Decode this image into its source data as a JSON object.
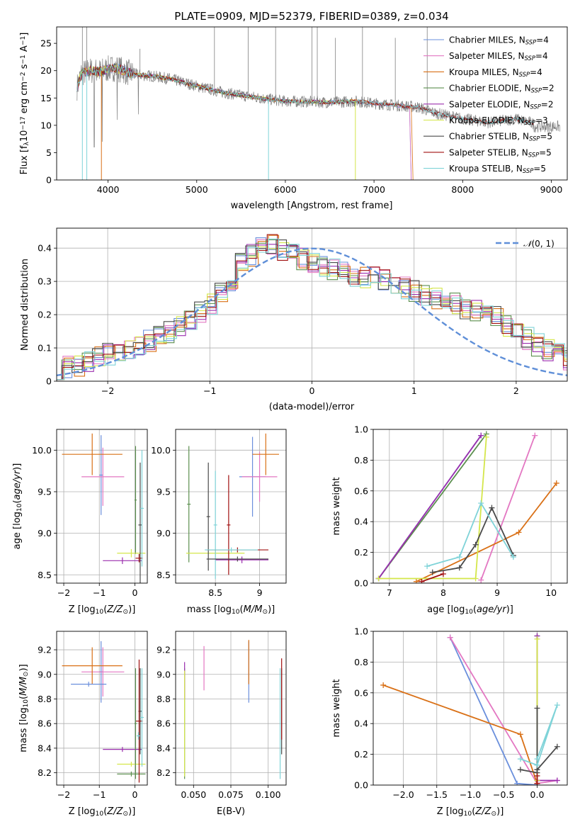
{
  "colors": {
    "chabrier_miles": "#6a8fdc",
    "salpeter_miles": "#e377c2",
    "kroupa_miles": "#d97016",
    "chabrier_elodie": "#5c8f4f",
    "salpeter_elodie": "#9b2fae",
    "kroupa_elodie": "#d4e64a",
    "chabrier_stelib": "#4a4a4a",
    "salpeter_stelib": "#a01010",
    "kroupa_stelib": "#7fd3d8",
    "spectrum": "#808080",
    "normal": "#5f8fd8"
  },
  "chart_data": [
    {
      "id": "spectrum",
      "type": "line",
      "title": "PLATE=0909, MJD=52379, FIBERID=0389, z=0.034",
      "xlabel": "wavelength [Angstrom, rest frame]",
      "ylabel": "Flux [f_λ 10^-17 erg cm^-2 s^-1 A^-1]",
      "xlim": [
        3420,
        9180
      ],
      "ylim": [
        0,
        28
      ],
      "xticks": [
        4000,
        5000,
        6000,
        7000,
        8000,
        9000
      ],
      "yticks": [
        0,
        5,
        10,
        15,
        20,
        25
      ],
      "grid": false,
      "legend_position": "top-right",
      "legend": [
        {
          "label": "Chabrier MILES, N_SSP=4",
          "color": "chabrier_miles"
        },
        {
          "label": "Salpeter MILES, N_SSP=4",
          "color": "salpeter_miles"
        },
        {
          "label": "Kroupa MILES, N_SSP=4",
          "color": "kroupa_miles"
        },
        {
          "label": "Chabrier ELODIE, N_SSP=2",
          "color": "chabrier_elodie"
        },
        {
          "label": "Salpeter ELODIE, N_SSP=2",
          "color": "salpeter_elodie"
        },
        {
          "label": "Kroupa ELODIE, N_SSP=3",
          "color": "kroupa_elodie"
        },
        {
          "label": "Chabrier STELIB, N_SSP=5",
          "color": "chabrier_stelib"
        },
        {
          "label": "Salpeter STELIB, N_SSP=5",
          "color": "salpeter_stelib"
        },
        {
          "label": "Kroupa STELIB, N_SSP=5",
          "color": "kroupa_stelib"
        }
      ],
      "continuum": {
        "x": [
          3650,
          3700,
          3800,
          3900,
          4000,
          4100,
          4200,
          4300,
          4500,
          4700,
          5000,
          5300,
          5500,
          5800,
          6000,
          6300,
          6500,
          6800,
          7000,
          7300,
          7500,
          7700,
          8000,
          8300,
          8600,
          8800
        ],
        "y": [
          17,
          19.5,
          20,
          19.8,
          20.3,
          20.5,
          19.8,
          19.3,
          19,
          18.5,
          17.2,
          16,
          15.5,
          14.8,
          14.4,
          14.3,
          14.2,
          14.4,
          14,
          13.6,
          13.3,
          12.2,
          11.2,
          10.5,
          11.2,
          10.3
        ]
      }
    },
    {
      "id": "residuals",
      "type": "line",
      "xlabel": "(data-model)/error",
      "ylabel": "Normed distribution",
      "xlim": [
        -2.5,
        2.5
      ],
      "ylim": [
        0,
        0.46
      ],
      "xticks": [
        -2,
        -1,
        0,
        1,
        2
      ],
      "yticks": [
        0.0,
        0.1,
        0.2,
        0.3,
        0.4
      ],
      "grid": true,
      "legend_position": "top-right",
      "legend": [
        {
          "label": "𝒩(0, 1)",
          "color": "normal"
        }
      ],
      "normal": {
        "mean": 0,
        "sigma": 1
      },
      "bin_width": 0.1,
      "hist_mean": [
        0.03,
        0.04,
        0.05,
        0.06,
        0.07,
        0.08,
        0.09,
        0.1,
        0.11,
        0.12,
        0.13,
        0.15,
        0.17,
        0.19,
        0.21,
        0.23,
        0.26,
        0.29,
        0.32,
        0.35,
        0.37,
        0.38,
        0.39,
        0.38,
        0.37,
        0.36,
        0.35,
        0.34,
        0.33,
        0.32,
        0.31,
        0.31,
        0.3,
        0.29,
        0.28,
        0.27,
        0.26,
        0.25,
        0.24,
        0.23,
        0.22,
        0.21,
        0.2,
        0.19,
        0.17,
        0.15,
        0.13,
        0.11,
        0.09,
        0.08,
        0.06,
        0.05,
        0.04,
        0.035,
        0.03
      ]
    },
    {
      "id": "age_vs_Z",
      "type": "scatter",
      "xlabel": "Z [log10(Z/Z⊙)]",
      "ylabel": "age [log10(age/yr)]",
      "xlim": [
        -2.2,
        0.35
      ],
      "ylim": [
        8.4,
        10.25
      ],
      "xticks": [
        -2,
        -1,
        0
      ],
      "yticks": [
        8.5,
        9.0,
        9.5,
        10.0
      ],
      "grid": true,
      "errorbars": [
        {
          "series": "chabrier_miles",
          "x": -0.95,
          "y": 9.7,
          "xerr": 0.05,
          "yerr": 0.48
        },
        {
          "series": "salpeter_miles",
          "x": -0.9,
          "y": 9.68,
          "xerr": 0.6,
          "yerr": 0.35
        },
        {
          "series": "kroupa_miles",
          "x": -1.2,
          "y": 9.95,
          "xerr": 0.85,
          "yerr": 0.25
        },
        {
          "series": "chabrier_elodie",
          "x": 0.02,
          "y": 9.4,
          "xerr": 0.03,
          "yerr": 0.65
        },
        {
          "series": "salpeter_elodie",
          "x": -0.35,
          "y": 8.67,
          "xerr": 0.55,
          "yerr": 0.04
        },
        {
          "series": "kroupa_elodie",
          "x": -0.1,
          "y": 8.76,
          "xerr": 0.4,
          "yerr": 0.05
        },
        {
          "series": "chabrier_stelib",
          "x": 0.15,
          "y": 9.1,
          "xerr": 0.05,
          "yerr": 0.75
        },
        {
          "series": "salpeter_stelib",
          "x": 0.12,
          "y": 8.7,
          "xerr": 0.1,
          "yerr": 0.05
        },
        {
          "series": "kroupa_stelib",
          "x": 0.2,
          "y": 9.3,
          "xerr": 0.05,
          "yerr": 0.7
        }
      ]
    },
    {
      "id": "age_vs_mass",
      "type": "scatter",
      "xlabel": "mass [log10(M/M⊙)]",
      "ylabel": "",
      "xlim": [
        8.05,
        9.3
      ],
      "ylim": [
        8.4,
        10.25
      ],
      "xticks": [
        8.5,
        9.0
      ],
      "yticks": [
        8.5,
        9.0,
        9.5,
        10.0
      ],
      "grid": true,
      "errorbars": [
        {
          "series": "chabrier_miles",
          "x": 8.92,
          "y": 9.68,
          "xerr": 0.15,
          "yerr": 0.48
        },
        {
          "series": "salpeter_miles",
          "x": 9.0,
          "y": 9.68,
          "xerr": 0.2,
          "yerr": 0.3
        },
        {
          "series": "kroupa_miles",
          "x": 9.07,
          "y": 9.95,
          "xerr": 0.15,
          "yerr": 0.25
        },
        {
          "series": "chabrier_elodie",
          "x": 8.2,
          "y": 9.35,
          "xerr": 0.02,
          "yerr": 0.7
        },
        {
          "series": "salpeter_elodie",
          "x": 8.8,
          "y": 8.68,
          "xerr": 0.3,
          "yerr": 0.04
        },
        {
          "series": "kroupa_elodie",
          "x": 8.5,
          "y": 8.76,
          "xerr": 0.33,
          "yerr": 0.05
        },
        {
          "series": "chabrier_stelib",
          "x": 8.42,
          "y": 9.2,
          "xerr": 0.02,
          "yerr": 0.65
        },
        {
          "series": "salpeter_stelib",
          "x": 8.65,
          "y": 9.1,
          "xerr": 0.02,
          "yerr": 0.6
        },
        {
          "series": "kroupa_stelib",
          "x": 8.5,
          "y": 9.1,
          "xerr": 0.02,
          "yerr": 0.65
        },
        {
          "series": "chabrier_stelib",
          "x": 8.75,
          "y": 8.69,
          "xerr": 0.35,
          "yerr": 0.03
        },
        {
          "series": "salpeter_stelib",
          "x": 8.75,
          "y": 8.8,
          "xerr": 0.35,
          "yerr": 0.03
        },
        {
          "series": "kroupa_stelib",
          "x": 8.68,
          "y": 8.8,
          "xerr": 0.3,
          "yerr": 0.03
        }
      ]
    },
    {
      "id": "weight_vs_age",
      "type": "line",
      "xlabel": "age [log10(age/yr)]",
      "ylabel": "mass weight",
      "xlim": [
        6.7,
        10.3
      ],
      "ylim": [
        0,
        1.0
      ],
      "xticks": [
        7,
        8,
        9,
        10
      ],
      "yticks": [
        0.0,
        0.2,
        0.4,
        0.6,
        0.8,
        1.0
      ],
      "grid": true,
      "series": [
        {
          "color": "chabrier_miles",
          "x": [
            6.8,
            8.7
          ],
          "y": [
            0.03,
            0.96
          ]
        },
        {
          "color": "salpeter_miles",
          "x": [
            8.7,
            9.7
          ],
          "y": [
            0.02,
            0.96
          ]
        },
        {
          "color": "kroupa_miles",
          "x": [
            7.5,
            9.4,
            10.1
          ],
          "y": [
            0.01,
            0.33,
            0.65
          ]
        },
        {
          "color": "chabrier_elodie",
          "x": [
            6.8,
            8.8
          ],
          "y": [
            0.03,
            0.97
          ]
        },
        {
          "color": "salpeter_elodie",
          "x": [
            6.8,
            8.7
          ],
          "y": [
            0.03,
            0.96
          ]
        },
        {
          "color": "kroupa_elodie",
          "x": [
            6.8,
            8.6,
            8.8
          ],
          "y": [
            0.03,
            0.03,
            0.95
          ]
        },
        {
          "color": "chabrier_stelib",
          "x": [
            7.8,
            8.3,
            8.6,
            8.9,
            9.3
          ],
          "y": [
            0.07,
            0.1,
            0.25,
            0.49,
            0.18
          ]
        },
        {
          "color": "salpeter_stelib",
          "x": [
            7.6,
            8.0
          ],
          "y": [
            0.01,
            0.06
          ]
        },
        {
          "color": "kroupa_stelib",
          "x": [
            7.7,
            8.3,
            8.7,
            9.3
          ],
          "y": [
            0.11,
            0.17,
            0.52,
            0.17
          ]
        }
      ]
    },
    {
      "id": "mass_vs_Z",
      "type": "scatter",
      "xlabel": "Z [log10(Z/Z⊙)]",
      "ylabel": "mass [log10(M/M⊙)]",
      "xlim": [
        -2.2,
        0.35
      ],
      "ylim": [
        8.1,
        9.35
      ],
      "xticks": [
        -2,
        -1,
        0
      ],
      "yticks": [
        8.2,
        8.4,
        8.6,
        8.8,
        9.0,
        9.2
      ],
      "grid": true,
      "errorbars": [
        {
          "series": "chabrier_miles",
          "x": -0.95,
          "y": 9.02,
          "xerr": 0.05,
          "yerr": 0.25
        },
        {
          "series": "salpeter_miles",
          "x": -0.9,
          "y": 9.02,
          "xerr": 0.6,
          "yerr": 0.2
        },
        {
          "series": "kroupa_miles",
          "x": -1.2,
          "y": 9.07,
          "xerr": 0.85,
          "yerr": 0.15
        },
        {
          "series": "chabrier_miles",
          "x": -1.3,
          "y": 8.92,
          "xerr": 0.5,
          "yerr": 0.02
        },
        {
          "series": "chabrier_elodie",
          "x": -0.1,
          "y": 8.19,
          "xerr": 0.4,
          "yerr": 0.02
        },
        {
          "series": "salpeter_elodie",
          "x": -0.35,
          "y": 8.39,
          "xerr": 0.55,
          "yerr": 0.02
        },
        {
          "series": "kroupa_elodie",
          "x": -0.1,
          "y": 8.27,
          "xerr": 0.4,
          "yerr": 0.02
        },
        {
          "series": "chabrier_stelib",
          "x": 0.15,
          "y": 8.7,
          "xerr": 0.05,
          "yerr": 0.35
        },
        {
          "series": "salpeter_stelib",
          "x": 0.12,
          "y": 8.62,
          "xerr": 0.1,
          "yerr": 0.5
        },
        {
          "series": "kroupa_stelib",
          "x": 0.2,
          "y": 8.65,
          "xerr": 0.05,
          "yerr": 0.4
        },
        {
          "series": "chabrier_elodie",
          "x": 0.02,
          "y": 8.6,
          "xerr": 0.03,
          "yerr": 0.45
        },
        {
          "series": "kroupa_stelib",
          "x": 0.1,
          "y": 8.5,
          "xerr": 0.05,
          "yerr": 0.03
        }
      ]
    },
    {
      "id": "mass_vs_ebv",
      "type": "scatter",
      "xlabel": "E(B-V)",
      "ylabel": "",
      "xlim": [
        0.038,
        0.112
      ],
      "ylim": [
        8.1,
        9.35
      ],
      "xticks": [
        0.05,
        0.075,
        0.1
      ],
      "xticklabels": [
        "0.050",
        "0.075",
        "0.100"
      ],
      "yticks": [
        8.2,
        8.4,
        8.6,
        8.8,
        9.0,
        9.2
      ],
      "grid": true,
      "errorbars": [
        {
          "series": "chabrier_miles",
          "x": 0.087,
          "y": 9.02,
          "xerr": 0,
          "yerr": 0.25
        },
        {
          "series": "salpeter_miles",
          "x": 0.057,
          "y": 9.05,
          "xerr": 0,
          "yerr": 0.18
        },
        {
          "series": "kroupa_miles",
          "x": 0.087,
          "y": 9.1,
          "xerr": 0,
          "yerr": 0.18
        },
        {
          "series": "chabrier_elodie",
          "x": 0.044,
          "y": 8.6,
          "xerr": 0,
          "yerr": 0.45
        },
        {
          "series": "salpeter_elodie",
          "x": 0.044,
          "y": 8.95,
          "xerr": 0,
          "yerr": 0.15
        },
        {
          "series": "kroupa_elodie",
          "x": 0.044,
          "y": 8.6,
          "xerr": 0,
          "yerr": 0.43
        },
        {
          "series": "chabrier_stelib",
          "x": 0.109,
          "y": 8.7,
          "xerr": 0,
          "yerr": 0.35
        },
        {
          "series": "salpeter_stelib",
          "x": 0.109,
          "y": 8.8,
          "xerr": 0,
          "yerr": 0.33
        },
        {
          "series": "kroupa_stelib",
          "x": 0.108,
          "y": 8.6,
          "xerr": 0,
          "yerr": 0.45
        }
      ]
    },
    {
      "id": "weight_vs_Z",
      "type": "line",
      "xlabel": "Z [log10(Z/Z⊙)]",
      "ylabel": "mass weight",
      "xlim": [
        -2.45,
        0.45
      ],
      "ylim": [
        0,
        1.0
      ],
      "xticks": [
        -2.0,
        -1.5,
        -1.0,
        -0.5,
        0.0
      ],
      "xticklabels": [
        "−2.0",
        "−1.5",
        "−1.0",
        "−0.5",
        "0.0"
      ],
      "yticks": [
        0.0,
        0.2,
        0.4,
        0.6,
        0.8,
        1.0
      ],
      "grid": true,
      "series": [
        {
          "color": "chabrier_miles",
          "x": [
            -1.3,
            -0.3,
            0.0
          ],
          "y": [
            0.96,
            0.01,
            0.0
          ]
        },
        {
          "color": "salpeter_miles",
          "x": [
            -1.3,
            0.0,
            0.3
          ],
          "y": [
            0.96,
            0.01,
            0.03
          ]
        },
        {
          "color": "kroupa_miles",
          "x": [
            -2.3,
            -0.25,
            0.0
          ],
          "y": [
            0.65,
            0.33,
            0.01
          ]
        },
        {
          "color": "chabrier_elodie",
          "x": [
            0.0,
            0.0
          ],
          "y": [
            0.03,
            0.97
          ]
        },
        {
          "color": "salpeter_elodie",
          "x": [
            0.0,
            0.0,
            0.3
          ],
          "y": [
            0.97,
            0.03,
            0.03
          ]
        },
        {
          "color": "kroupa_elodie",
          "x": [
            0.0,
            0.0
          ],
          "y": [
            0.03,
            0.95
          ]
        },
        {
          "color": "chabrier_stelib",
          "x": [
            -0.25,
            0.0,
            0.0,
            0.0,
            0.3
          ],
          "y": [
            0.1,
            0.08,
            0.5,
            0.1,
            0.25
          ]
        },
        {
          "color": "salpeter_stelib",
          "x": [
            0.0,
            0.0
          ],
          "y": [
            0.01,
            0.06
          ]
        },
        {
          "color": "kroupa_stelib",
          "x": [
            -0.25,
            0.0,
            0.3,
            0.0
          ],
          "y": [
            0.17,
            0.13,
            0.52,
            0.17
          ]
        }
      ]
    }
  ]
}
